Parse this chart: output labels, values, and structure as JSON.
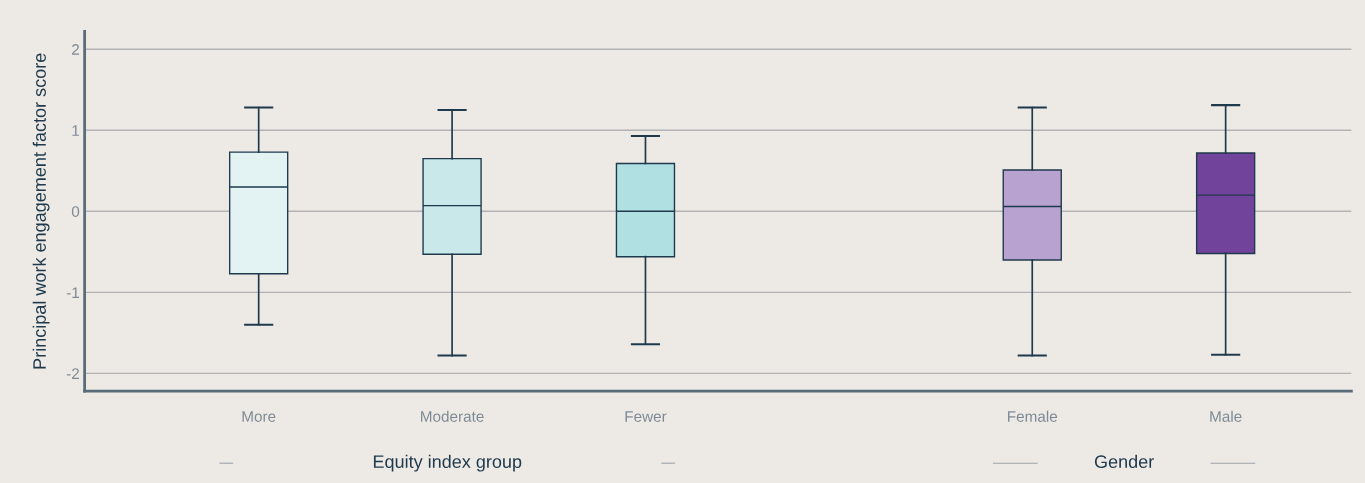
{
  "chart_data": {
    "type": "box",
    "ylabel": "Principal work engagement factor score",
    "categories": [
      "More",
      "Moderate",
      "Fewer",
      null,
      "Female",
      "Male"
    ],
    "boxes": [
      {
        "low": -1.4,
        "q1": -0.77,
        "median": 0.3,
        "q3": 0.73,
        "high": 1.28
      },
      {
        "low": -1.78,
        "q1": -0.53,
        "median": 0.07,
        "q3": 0.65,
        "high": 1.25
      },
      {
        "low": -1.64,
        "q1": -0.56,
        "median": 0.0,
        "q3": 0.59,
        "high": 0.93
      },
      null,
      {
        "low": -1.78,
        "q1": -0.6,
        "median": 0.06,
        "q3": 0.51,
        "high": 1.28
      },
      {
        "low": -1.77,
        "q1": -0.52,
        "median": 0.2,
        "q3": 0.72,
        "high": 1.31
      }
    ],
    "colors": [
      "#e3f3f3",
      "#c9e8ea",
      "#b0e0e2",
      null,
      "#b8a2cf",
      "#71439b"
    ],
    "ylim": [
      -2.22,
      2.22
    ],
    "yticks": [
      -2,
      -1,
      0,
      1,
      2
    ],
    "grid": "y",
    "legend": false,
    "annotations": [
      "Equity index group",
      "Gender"
    ]
  }
}
